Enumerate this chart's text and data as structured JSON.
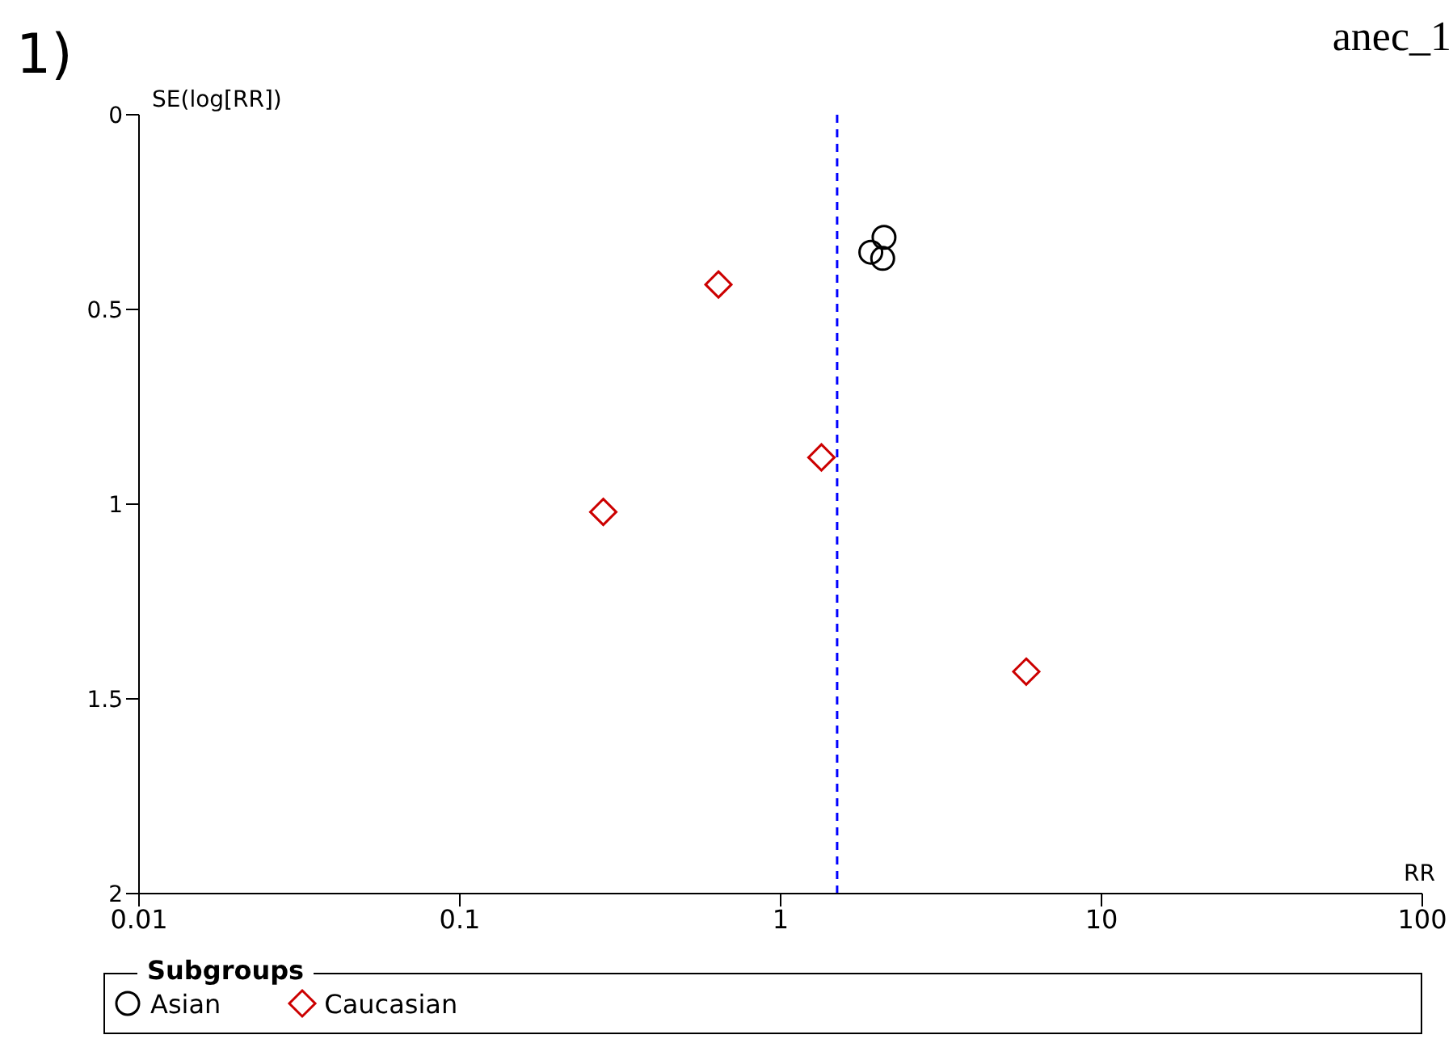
{
  "chart_data": {
    "type": "scatter",
    "xlabel": "RR",
    "ylabel": "SE(log[RR])",
    "legend_title": "Subgroups",
    "annotations": [
      "1)",
      "anec_1"
    ],
    "log": "x",
    "xlim": [
      0.01,
      100
    ],
    "xticks": [
      0.01,
      0.1,
      1,
      10,
      100
    ],
    "ylim": [
      2,
      0
    ],
    "yticks": [
      0,
      0.5,
      1,
      1.5,
      2
    ],
    "grid": false,
    "legend": "bottom",
    "ref_lines": [
      {
        "axis": "x",
        "value": 1.5,
        "color": "#0000ff",
        "line_style": "dashed"
      }
    ],
    "series": [
      {
        "name": "Asian",
        "color": "#000000",
        "marker": "circle",
        "x": [
          2.1,
          1.91,
          2.08
        ],
        "values": [
          0.315,
          0.353,
          0.369
        ]
      },
      {
        "name": "Caucasian",
        "color": "#cc0000",
        "marker": "diamond",
        "x": [
          0.64,
          1.34,
          0.28,
          5.83
        ],
        "values": [
          0.436,
          0.88,
          1.02,
          1.43
        ]
      }
    ]
  }
}
